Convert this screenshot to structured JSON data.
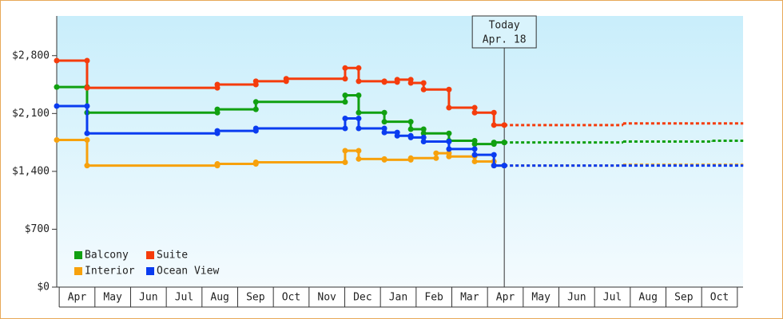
{
  "chart_data": {
    "type": "step",
    "categories": [
      "Apr",
      "May",
      "Jun",
      "Jul",
      "Aug",
      "Sep",
      "Oct",
      "Nov",
      "Dec",
      "Jan",
      "Feb",
      "Mar",
      "Apr",
      "May",
      "Jun",
      "Jul",
      "Aug",
      "Sep",
      "Oct"
    ],
    "xlim": [
      -0.07,
      19.16
    ],
    "ylim": [
      0,
      3280
    ],
    "yticks": [
      {
        "value": 0,
        "label": "$0"
      },
      {
        "value": 700,
        "label": "$700"
      },
      {
        "value": 1400,
        "label": "$1,400"
      },
      {
        "value": 2100,
        "label": "$2,100"
      },
      {
        "value": 2800,
        "label": "$2,800"
      }
    ],
    "today": {
      "x": 12.47,
      "label": "Today",
      "date": "Apr. 18"
    },
    "legend": "lower left",
    "series": [
      {
        "name": "Balcony",
        "color": "#11a011",
        "x": [
          -0.07,
          0.78,
          4.43,
          5.51,
          8.01,
          8.39,
          9.11,
          9.85,
          10.21,
          10.92,
          11.64,
          12.18,
          12.47
        ],
        "values": [
          2420,
          2110,
          2150,
          2240,
          2320,
          2110,
          2000,
          1910,
          1860,
          1770,
          1730,
          1750,
          1750
        ],
        "forecast": {
          "x": [
            12.47,
            15.8,
            18.3,
            19.16
          ],
          "values": [
            1750,
            1760,
            1770,
            1770
          ]
        }
      },
      {
        "name": "Suite",
        "color": "#f53c0c",
        "x": [
          -0.07,
          0.78,
          4.43,
          5.51,
          6.36,
          8.01,
          8.39,
          9.11,
          9.47,
          9.85,
          10.21,
          10.92,
          11.64,
          12.18,
          12.47
        ],
        "values": [
          2740,
          2410,
          2450,
          2490,
          2520,
          2650,
          2490,
          2480,
          2510,
          2470,
          2390,
          2170,
          2110,
          1960,
          1960
        ],
        "forecast": {
          "x": [
            12.47,
            15.8,
            19.16
          ],
          "values": [
            1960,
            1980,
            1980
          ]
        }
      },
      {
        "name": "Interior",
        "color": "#f7a10c",
        "x": [
          -0.07,
          0.78,
          4.43,
          5.51,
          8.01,
          8.39,
          9.11,
          9.85,
          10.56,
          10.92,
          11.64,
          12.18,
          12.47
        ],
        "values": [
          1780,
          1470,
          1490,
          1510,
          1650,
          1550,
          1540,
          1560,
          1620,
          1580,
          1520,
          1470,
          1470
        ],
        "forecast": {
          "x": [
            12.47,
            15.8,
            19.16
          ],
          "values": [
            1470,
            1480,
            1480
          ]
        }
      },
      {
        "name": "Ocean View",
        "color": "#0a3cf0",
        "x": [
          -0.07,
          0.78,
          4.43,
          5.51,
          8.01,
          8.39,
          9.11,
          9.47,
          9.85,
          10.21,
          10.92,
          11.64,
          12.18,
          12.47
        ],
        "values": [
          2190,
          1860,
          1890,
          1920,
          2040,
          1920,
          1870,
          1830,
          1810,
          1760,
          1670,
          1600,
          1470,
          1470
        ],
        "forecast": {
          "x": [
            12.47,
            15.8,
            19.16
          ],
          "values": [
            1470,
            1470,
            1470
          ]
        }
      }
    ]
  }
}
